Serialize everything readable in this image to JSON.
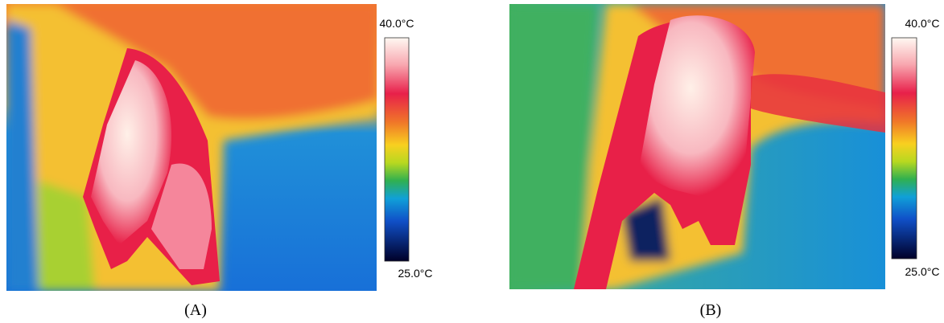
{
  "panels": [
    {
      "label": "(A)",
      "scale": {
        "max": "40.0°C",
        "min": "25.0°C"
      }
    },
    {
      "label": "(B)",
      "scale": {
        "max": "40.0°C",
        "min": "25.0°C"
      }
    }
  ]
}
